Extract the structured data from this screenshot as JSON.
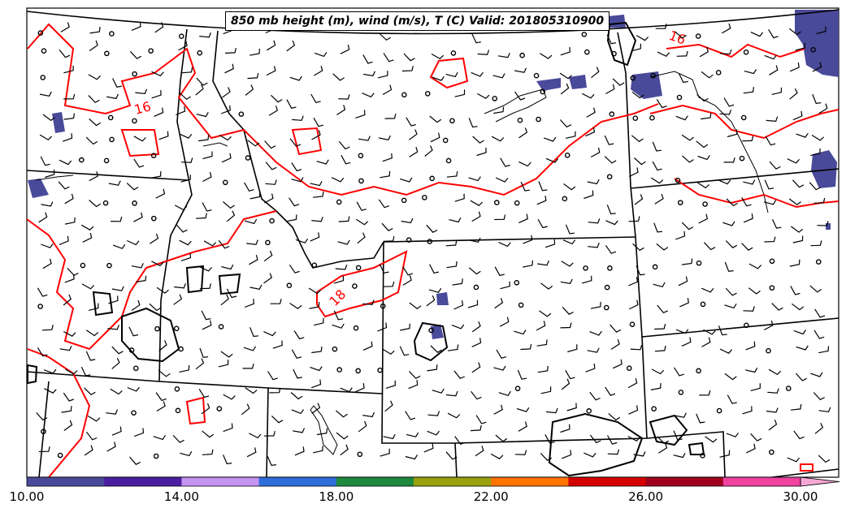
{
  "title": "850 mb height (m), wind (m/s), T (C) Valid: 201805310900",
  "contour_labels": [
    {
      "text": "16",
      "color": "#ff0000"
    },
    {
      "text": "16",
      "color": "#ff0000"
    },
    {
      "text": "18",
      "color": "#ff0000"
    }
  ],
  "colorbar": {
    "ticks": [
      "10.00",
      "14.00",
      "18.00",
      "22.00",
      "26.00",
      "30.00"
    ],
    "colors": [
      "#4a4a9a",
      "#4b1ea1",
      "#c593f2",
      "#2f6ddb",
      "#1e8a3f",
      "#9aa10f",
      "#ff7300",
      "#d40000",
      "#a0001e",
      "#f042a0",
      "#f4a6d4"
    ]
  },
  "colors": {
    "temperature_contour": "#ff0000",
    "height_contour": "#000000",
    "boundaries": "#000000",
    "shaded_fill": "#4a4a9a"
  }
}
